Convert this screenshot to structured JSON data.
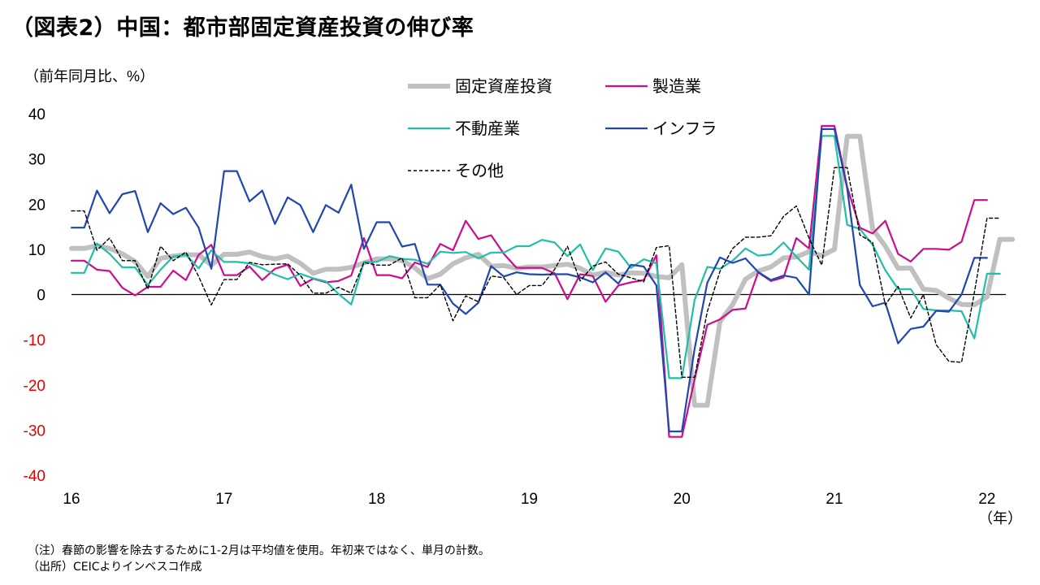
{
  "title": "（図表2）中国：都市部固定資産投資の伸び率",
  "notes": [
    "（注）春節の影響を除去するために1-2月は平均値を使用。年初来ではなく、単月の計数。",
    "（出所）CEICよりインベスコ作成"
  ],
  "chart_data": {
    "type": "line",
    "ylabel": "（前年同月比、%）",
    "xlabel": "（年）",
    "ylim": [
      -40,
      40
    ],
    "yticks": [
      {
        "label": "40",
        "value": 40,
        "color": "#000000"
      },
      {
        "label": "30",
        "value": 30,
        "color": "#000000"
      },
      {
        "label": "20",
        "value": 20,
        "color": "#000000"
      },
      {
        "label": "10",
        "value": 10,
        "color": "#000000"
      },
      {
        "label": "0",
        "value": 0,
        "color": "#000000"
      },
      {
        "label": "-10",
        "value": -10,
        "color": "#e00000"
      },
      {
        "label": "-20",
        "value": -20,
        "color": "#e00000"
      },
      {
        "label": "-30",
        "value": -30,
        "color": "#e00000"
      },
      {
        "label": "-40",
        "value": -40,
        "color": "#e00000"
      }
    ],
    "xticks": [
      {
        "label": "16",
        "value": 2016
      },
      {
        "label": "17",
        "value": 2017
      },
      {
        "label": "18",
        "value": 2018
      },
      {
        "label": "19",
        "value": 2019
      },
      {
        "label": "20",
        "value": 2020
      },
      {
        "label": "21",
        "value": 2021
      },
      {
        "label": "22",
        "value": 2022
      }
    ],
    "x_start": "2016-01",
    "legend_position": "top-center",
    "series": [
      {
        "name": "固定資産投資",
        "color": "#c0c0c0",
        "style": "thick",
        "values": [
          10.2,
          10.2,
          10.8,
          10.2,
          9.0,
          7.3,
          4.0,
          8.0,
          8.5,
          8.8,
          8.8,
          6.5,
          8.9,
          8.9,
          9.4,
          8.4,
          7.9,
          8.5,
          6.9,
          4.7,
          5.6,
          5.6,
          6.0,
          7.0,
          7.9,
          7.9,
          7.5,
          5.9,
          3.5,
          4.5,
          6.8,
          8.1,
          8.9,
          6.3,
          6.4,
          5.8,
          6.1,
          6.1,
          6.4,
          6.7,
          5.8,
          4.3,
          4.9,
          4.3,
          4.8,
          4.7,
          4.0,
          3.7,
          6.6,
          -24.5,
          -24.5,
          -6.0,
          -2.2,
          3.4,
          5.2,
          6.1,
          8.1,
          8.3,
          9.5,
          8.6,
          10.0,
          35.0,
          35.0,
          14.5,
          10.7,
          5.8,
          5.9,
          1.2,
          0.9,
          -0.8,
          -2.2,
          -2.3,
          -0.5,
          12.2,
          12.2
        ]
      },
      {
        "name": "製造業",
        "color": "#cc0d8c",
        "style": "normal",
        "values": [
          7.5,
          7.5,
          5.5,
          5.2,
          1.5,
          -0.2,
          1.7,
          1.7,
          5.3,
          3.2,
          8.8,
          11.0,
          4.3,
          4.3,
          6.2,
          3.2,
          5.7,
          6.6,
          1.9,
          3.5,
          2.7,
          3.0,
          4.2,
          12.5,
          4.3,
          4.3,
          3.6,
          7.1,
          6.1,
          11.2,
          9.8,
          16.3,
          12.3,
          13.1,
          9.0,
          5.9,
          5.9,
          5.9,
          4.7,
          -1.0,
          4.5,
          4.1,
          -1.6,
          2.0,
          2.7,
          3.2,
          8.7,
          -31.5,
          -31.5,
          -18.8,
          -6.7,
          -5.5,
          -3.4,
          -3.1,
          4.9,
          3.0,
          3.8,
          12.5,
          10.2,
          37.3,
          37.3,
          23.8,
          14.8,
          13.5,
          16.3,
          9.0,
          7.3,
          10.1,
          10.1,
          9.9,
          11.7,
          20.9,
          20.9
        ]
      },
      {
        "name": "不動産業",
        "color": "#1fbfa8",
        "style": "normal",
        "values": [
          4.8,
          4.8,
          11.3,
          9.0,
          6.0,
          6.0,
          2.1,
          5.5,
          8.4,
          8.8,
          5.8,
          9.8,
          7.2,
          7.2,
          6.9,
          5.8,
          4.4,
          3.4,
          4.6,
          3.6,
          2.9,
          0.1,
          -2.2,
          7.2,
          7.2,
          8.5,
          7.9,
          7.7,
          6.8,
          9.5,
          9.2,
          9.4,
          8.0,
          9.3,
          9.3,
          10.7,
          10.7,
          12.1,
          11.5,
          8.5,
          11.1,
          5.4,
          10.2,
          9.5,
          5.9,
          7.8,
          6.9,
          -18.5,
          -18.5,
          -1.2,
          6.1,
          5.7,
          7.5,
          10.2,
          8.6,
          8.9,
          11.5,
          8.4,
          5.5,
          35.1,
          35.1,
          15.4,
          14.5,
          11.0,
          5.4,
          1.2,
          1.2,
          -3.2,
          -3.5,
          -3.5,
          -3.7,
          -9.7,
          4.6,
          4.6
        ]
      },
      {
        "name": "インフラ",
        "color": "#2146b0",
        "style": "normal",
        "values": [
          14.8,
          14.8,
          23.0,
          18.0,
          22.2,
          22.9,
          13.8,
          20.2,
          17.8,
          19.2,
          14.8,
          5.7,
          27.3,
          27.3,
          20.6,
          23.0,
          15.6,
          21.5,
          19.8,
          13.8,
          19.8,
          18.1,
          24.3,
          10.1,
          16.0,
          16.0,
          10.6,
          11.2,
          2.2,
          2.2,
          -2.0,
          -4.3,
          -1.8,
          6.3,
          4.0,
          4.9,
          4.5,
          4.4,
          4.5,
          4.5,
          3.8,
          2.7,
          4.9,
          2.4,
          6.6,
          6.2,
          2.0,
          -30.3,
          -30.3,
          -12.0,
          2.6,
          8.2,
          7.0,
          8.0,
          5.0,
          3.2,
          4.2,
          3.7,
          0.0,
          36.6,
          36.6,
          23.5,
          2.1,
          -2.6,
          -1.8,
          -10.8,
          -7.6,
          -7.1,
          -3.6,
          -3.8,
          0.0,
          8.1,
          8.1
        ]
      },
      {
        "name": "その他",
        "color": "#000000",
        "style": "dashed",
        "values": [
          18.5,
          18.5,
          9.8,
          12.5,
          7.5,
          7.5,
          1.2,
          10.7,
          7.5,
          9.4,
          4.0,
          -2.3,
          3.3,
          3.3,
          7.1,
          6.6,
          6.7,
          6.8,
          4.2,
          0.3,
          0.3,
          1.6,
          0.3,
          7.1,
          6.5,
          6.5,
          8.1,
          -0.7,
          -0.7,
          2.2,
          -5.8,
          -0.3,
          -1.6,
          4.1,
          3.7,
          0.0,
          2.0,
          2.0,
          5.6,
          10.7,
          3.0,
          6.3,
          7.2,
          4.5,
          3.7,
          2.8,
          10.4,
          10.8,
          -18.3,
          -18.3,
          -3.8,
          5.1,
          10.2,
          12.7,
          12.7,
          13.0,
          17.3,
          19.6,
          12.5,
          6.5,
          28.1,
          28.1,
          13.2,
          11.5,
          -2.3,
          1.8,
          -5.2,
          0.0,
          -11.1,
          -14.8,
          -15.0,
          0.4,
          16.9,
          16.9
        ]
      }
    ]
  }
}
